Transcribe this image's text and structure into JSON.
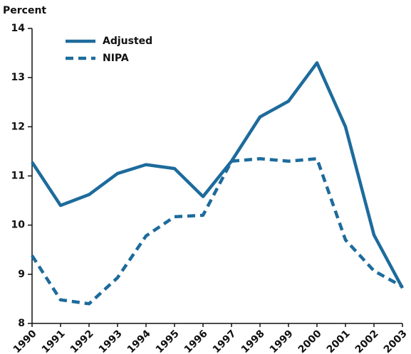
{
  "chart_data": {
    "type": "line",
    "y_label": "Percent",
    "categories": [
      "1990",
      "1991",
      "1992",
      "1993",
      "1994",
      "1995",
      "1996",
      "1997",
      "1998",
      "1999",
      "2000",
      "2001",
      "2002",
      "2003"
    ],
    "series": [
      {
        "name": "Adjusted",
        "color": "#1d6b9c",
        "linestyle": "solid",
        "values": [
          11.28,
          10.4,
          10.62,
          11.05,
          11.23,
          11.15,
          10.58,
          11.3,
          12.2,
          12.52,
          13.3,
          12.0,
          9.8,
          8.72
        ]
      },
      {
        "name": "NIPA",
        "color": "#1d6b9c",
        "linestyle": "dashed",
        "values": [
          9.38,
          8.48,
          8.4,
          8.93,
          9.78,
          10.17,
          10.2,
          11.3,
          11.35,
          11.3,
          11.35,
          9.7,
          9.07,
          8.75
        ]
      }
    ],
    "ylim": [
      8,
      14
    ],
    "yticks": [
      8,
      9,
      10,
      11,
      12,
      13,
      14
    ],
    "grid": false,
    "legend": "upper left"
  }
}
